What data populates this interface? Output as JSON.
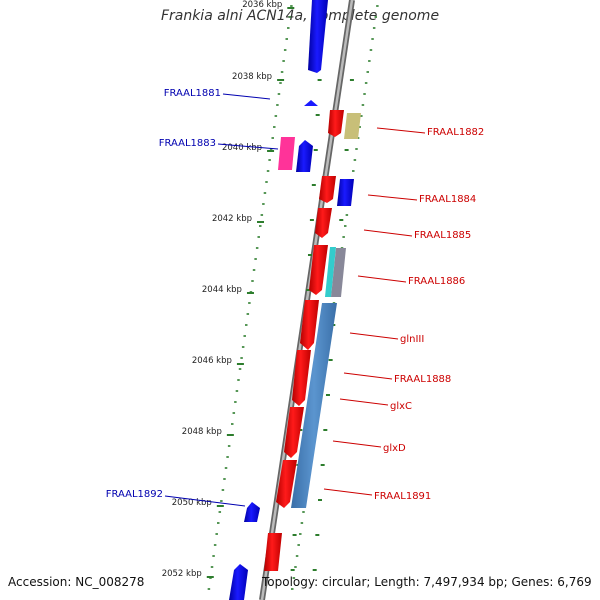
{
  "title": "Frankia alni ACN14a, complete genome",
  "accession": "Accession: NC_008278",
  "topology": "Topology: circular; Length: 7,497,934 bp; Genes: 6,769",
  "ticks": [
    "2036 kbp",
    "2038 kbp",
    "2040 kbp",
    "2042 kbp",
    "2044 kbp",
    "2046 kbp",
    "2048 kbp",
    "2050 kbp",
    "2052 kbp"
  ],
  "genes_left": [
    "FRAAL1881",
    "FRAAL1883",
    "FRAAL1892"
  ],
  "genes_right": [
    "FRAAL1882",
    "FRAAL1884",
    "FRAAL1885",
    "FRAAL1886",
    "glnIII",
    "FRAAL1888",
    "glxC",
    "glxD",
    "FRAAL1891"
  ],
  "colors": {
    "forward": "#ff0000",
    "reverse": "#0000ff",
    "pink": "#ff3399",
    "khaki": "#c8bf78",
    "cyan": "#33cccc",
    "steel": "#4f86c0",
    "backbone": "#888888",
    "tick": "#2d7d2d",
    "label_left": "#0000b0",
    "label_right": "#cc0000"
  }
}
